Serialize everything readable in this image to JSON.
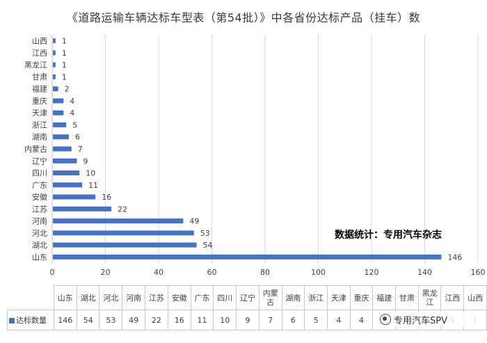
{
  "chart_data": {
    "type": "bar",
    "orientation": "horizontal",
    "title": "《道路运输车辆达标车型表（第54批）》中各省份达标产品（挂车）数",
    "categories": [
      "山东",
      "湖北",
      "河北",
      "河南",
      "江苏",
      "安徽",
      "广东",
      "四川",
      "辽宁",
      "内蒙古",
      "湖南",
      "浙江",
      "天津",
      "重庆",
      "福建",
      "甘肃",
      "黑龙江",
      "江西",
      "山西"
    ],
    "series": [
      {
        "name": "达标数量",
        "values": [
          146,
          54,
          53,
          49,
          22,
          16,
          11,
          10,
          9,
          7,
          6,
          5,
          4,
          4,
          2,
          1,
          1,
          1,
          1
        ],
        "color": "#4472c4"
      }
    ],
    "xlim": [
      0,
      160
    ],
    "xticks": [
      0,
      20,
      40,
      60,
      80,
      100,
      120,
      140,
      160
    ],
    "grid": true,
    "data_labels": true,
    "legend": "data-table",
    "annotation": "数据统计：专用汽车杂志"
  },
  "table": {
    "legend_label": "达标数量",
    "headers": [
      "山东",
      "湖北",
      "河北",
      "河南",
      "江苏",
      "安徽",
      "广东",
      "四川",
      "辽宁",
      "内蒙\n古",
      "湖南",
      "浙江",
      "天津",
      "重庆",
      "福建",
      "甘肃",
      "黑龙\n江",
      "江西",
      "山西"
    ],
    "values": [
      "146",
      "54",
      "53",
      "49",
      "22",
      "16",
      "11",
      "10",
      "9",
      "7",
      "6",
      "5",
      "4",
      "4",
      "2",
      "1",
      "1",
      "1",
      "1"
    ]
  },
  "watermark": {
    "text": "专用汽车SPV",
    "icon": "wechat-icon"
  }
}
